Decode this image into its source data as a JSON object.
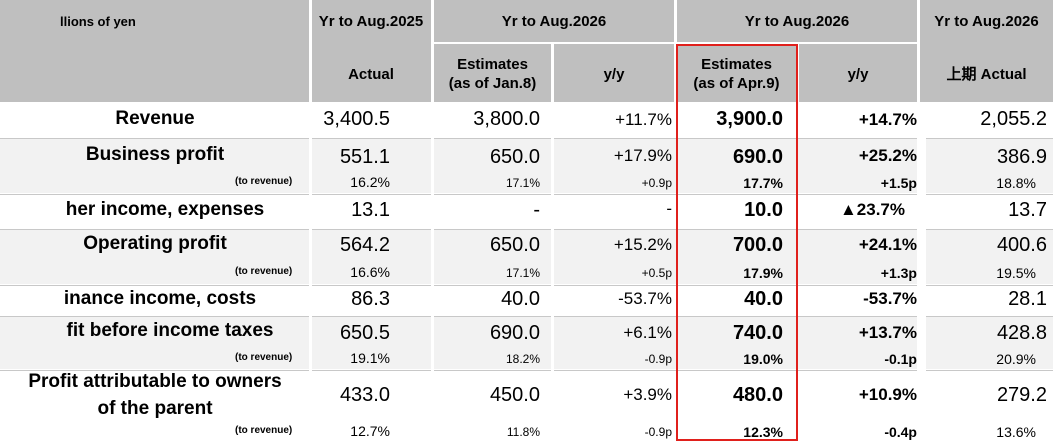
{
  "header": {
    "unit_label": "llions of yen",
    "col_2025": "Yr to Aug.2025",
    "col_2026_a": "Yr to Aug.2026",
    "col_2026_b": "Yr to Aug.2026",
    "col_2026_c": "Yr to Aug.2026",
    "actual": "Actual",
    "est_jan_l1": "Estimates",
    "est_jan_l2": "(as of Jan.8)",
    "yy1": "y/y",
    "est_apr_l1": "Estimates",
    "est_apr_l2": "(as of Apr.9)",
    "yy2": "y/y",
    "h1_actual": "上期 Actual"
  },
  "rows": {
    "revenue": {
      "label": "Revenue",
      "actual": "3,400.5",
      "est_jan": "3,800.0",
      "yy1": "+11.7%",
      "est_apr": "3,900.0",
      "yy2": "+14.7%",
      "h1": "2,055.2"
    },
    "business_profit": {
      "label": "Business profit",
      "actual": "551.1",
      "est_jan": "650.0",
      "yy1": "+17.9%",
      "est_apr": "690.0",
      "yy2": "+25.2%",
      "h1": "386.9",
      "sub_label": "(to revenue)",
      "sub_actual": "16.2%",
      "sub_est_jan": "17.1%",
      "sub_yy1": "+0.9p",
      "sub_est_apr": "17.7%",
      "sub_yy2": "+1.5p",
      "sub_h1": "18.8%"
    },
    "other_income": {
      "label": "her income, expenses",
      "actual": "13.1",
      "est_jan": "-",
      "yy1": "-",
      "est_apr": "10.0",
      "yy2": "▲23.7%",
      "h1": "13.7"
    },
    "operating_profit": {
      "label": "Operating profit",
      "actual": "564.2",
      "est_jan": "650.0",
      "yy1": "+15.2%",
      "est_apr": "700.0",
      "yy2": "+24.1%",
      "h1": "400.6",
      "sub_label": "(to revenue)",
      "sub_actual": "16.6%",
      "sub_est_jan": "17.1%",
      "sub_yy1": "+0.5p",
      "sub_est_apr": "17.9%",
      "sub_yy2": "+1.3p",
      "sub_h1": "19.5%"
    },
    "finance": {
      "label": "inance income, costs",
      "actual": "86.3",
      "est_jan": "40.0",
      "yy1": "-53.7%",
      "est_apr": "40.0",
      "yy2": "-53.7%",
      "h1": "28.1"
    },
    "pbt": {
      "label": "fit before income taxes",
      "actual": "650.5",
      "est_jan": "690.0",
      "yy1": "+6.1%",
      "est_apr": "740.0",
      "yy2": "+13.7%",
      "h1": "428.8",
      "sub_label": "(to revenue)",
      "sub_actual": "19.1%",
      "sub_est_jan": "18.2%",
      "sub_yy1": "-0.9p",
      "sub_est_apr": "19.0%",
      "sub_yy2": "-0.1p",
      "sub_h1": "20.9%"
    },
    "owners": {
      "label_l1": "Profit attributable to owners",
      "label_l2": "of the parent",
      "actual": "433.0",
      "est_jan": "450.0",
      "yy1": "+3.9%",
      "est_apr": "480.0",
      "yy2": "+10.9%",
      "h1": "279.2",
      "sub_label": "(to revenue)",
      "sub_actual": "12.7%",
      "sub_est_jan": "11.8%",
      "sub_yy1": "-0.9p",
      "sub_est_apr": "12.3%",
      "sub_yy2": "-0.4p",
      "sub_h1": "13.6%"
    }
  },
  "colors": {
    "header_bg": "#bfbfbf",
    "row_shade": "#f2f2f2",
    "highlight_border": "#e0201c"
  }
}
